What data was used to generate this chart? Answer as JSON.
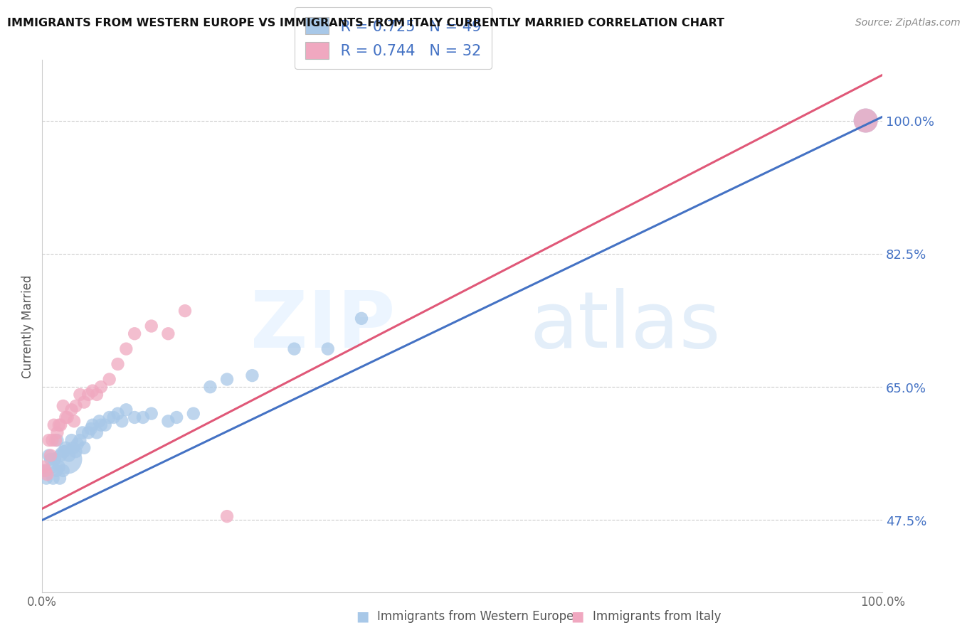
{
  "title": "IMMIGRANTS FROM WESTERN EUROPE VS IMMIGRANTS FROM ITALY CURRENTLY MARRIED CORRELATION CHART",
  "source": "Source: ZipAtlas.com",
  "ylabel": "Currently Married",
  "legend_blue_R": "R = 0.725",
  "legend_blue_N": "N = 49",
  "legend_pink_R": "R = 0.744",
  "legend_pink_N": "N = 32",
  "blue_color": "#a8c8e8",
  "pink_color": "#f0a8c0",
  "blue_line_color": "#4472c4",
  "pink_line_color": "#e05878",
  "ytick_color": "#4472c4",
  "blue_x": [
    0.003,
    0.005,
    0.008,
    0.01,
    0.012,
    0.013,
    0.015,
    0.017,
    0.018,
    0.02,
    0.021,
    0.022,
    0.025,
    0.026,
    0.028,
    0.03,
    0.032,
    0.035,
    0.037,
    0.04,
    0.042,
    0.045,
    0.048,
    0.05,
    0.055,
    0.058,
    0.06,
    0.065,
    0.068,
    0.07,
    0.075,
    0.08,
    0.085,
    0.09,
    0.095,
    0.1,
    0.11,
    0.12,
    0.13,
    0.15,
    0.16,
    0.18,
    0.2,
    0.22,
    0.25,
    0.3,
    0.34,
    0.38,
    0.98
  ],
  "blue_y": [
    0.54,
    0.53,
    0.56,
    0.555,
    0.545,
    0.53,
    0.555,
    0.54,
    0.58,
    0.545,
    0.53,
    0.56,
    0.54,
    0.565,
    0.57,
    0.555,
    0.56,
    0.58,
    0.57,
    0.565,
    0.575,
    0.58,
    0.59,
    0.57,
    0.59,
    0.595,
    0.6,
    0.59,
    0.605,
    0.6,
    0.6,
    0.61,
    0.61,
    0.615,
    0.605,
    0.62,
    0.61,
    0.61,
    0.615,
    0.605,
    0.61,
    0.615,
    0.65,
    0.66,
    0.665,
    0.7,
    0.7,
    0.74,
    1.0
  ],
  "blue_sizes": [
    35,
    35,
    35,
    35,
    35,
    35,
    35,
    35,
    35,
    35,
    35,
    35,
    35,
    35,
    35,
    180,
    35,
    35,
    35,
    35,
    35,
    35,
    35,
    35,
    35,
    35,
    35,
    35,
    35,
    35,
    35,
    35,
    35,
    35,
    35,
    35,
    35,
    35,
    35,
    35,
    35,
    35,
    35,
    35,
    35,
    35,
    35,
    35,
    120
  ],
  "pink_x": [
    0.002,
    0.004,
    0.006,
    0.008,
    0.01,
    0.012,
    0.014,
    0.016,
    0.018,
    0.02,
    0.022,
    0.025,
    0.028,
    0.03,
    0.035,
    0.038,
    0.04,
    0.045,
    0.05,
    0.055,
    0.06,
    0.065,
    0.07,
    0.08,
    0.09,
    0.1,
    0.11,
    0.13,
    0.15,
    0.17,
    0.22,
    0.98
  ],
  "pink_y": [
    0.545,
    0.54,
    0.535,
    0.58,
    0.56,
    0.58,
    0.6,
    0.58,
    0.59,
    0.6,
    0.6,
    0.625,
    0.61,
    0.61,
    0.62,
    0.605,
    0.625,
    0.64,
    0.63,
    0.64,
    0.645,
    0.64,
    0.65,
    0.66,
    0.68,
    0.7,
    0.72,
    0.73,
    0.72,
    0.75,
    0.48,
    1.0
  ],
  "pink_sizes": [
    35,
    35,
    35,
    35,
    35,
    35,
    35,
    35,
    35,
    35,
    35,
    35,
    35,
    35,
    35,
    35,
    35,
    35,
    35,
    35,
    35,
    35,
    35,
    35,
    35,
    35,
    35,
    35,
    35,
    35,
    35,
    120
  ],
  "blue_line": [
    0.0,
    1.0,
    0.475,
    1.005
  ],
  "pink_line": [
    0.0,
    1.0,
    0.49,
    1.06
  ],
  "xlim": [
    0.0,
    1.0
  ],
  "ylim": [
    0.38,
    1.08
  ],
  "yticks": [
    0.475,
    0.65,
    0.825,
    1.0
  ],
  "ytick_labels": [
    "47.5%",
    "65.0%",
    "82.5%",
    "100.0%"
  ],
  "xticks": [
    0.0,
    1.0
  ],
  "xtick_labels": [
    "0.0%",
    "100.0%"
  ],
  "bottom_legend_blue": "Immigrants from Western Europe",
  "bottom_legend_pink": "Immigrants from Italy"
}
